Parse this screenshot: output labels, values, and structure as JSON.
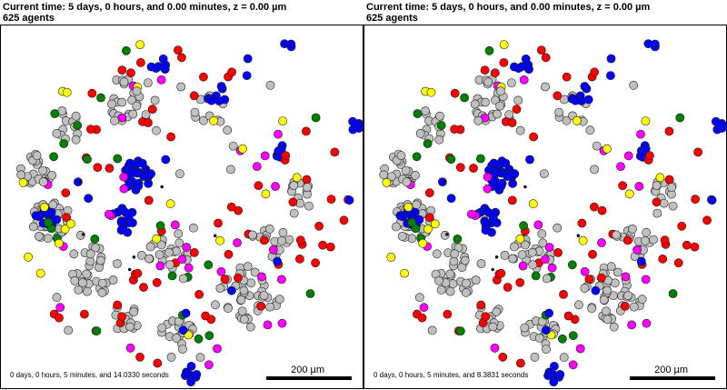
{
  "panels": [
    {
      "time_line": "Current time: 5 days, 0 hours, and 0.00 minutes, z = 0.00 µm",
      "agents_line": "625 agents",
      "elapsed": "0 days, 0 hours, 5 minutes, and 14.0330 seconds",
      "scale_label": "200 µm"
    },
    {
      "time_line": "Current time: 5 days, 0 hours, and 0.00 minutes, z = 0.00 µm",
      "agents_line": "625 agents",
      "elapsed": "0 days, 0 hours, 5 minutes, and 8.3831 seconds",
      "scale_label": "200 µm"
    }
  ],
  "colors": {
    "gray": "#c0c0c0",
    "red": "#ff0000",
    "blue": "#0000ff",
    "yellow": "#ffff00",
    "green": "#008000",
    "magenta": "#ff00ff",
    "black": "#000000",
    "outline": "#202020"
  }
}
